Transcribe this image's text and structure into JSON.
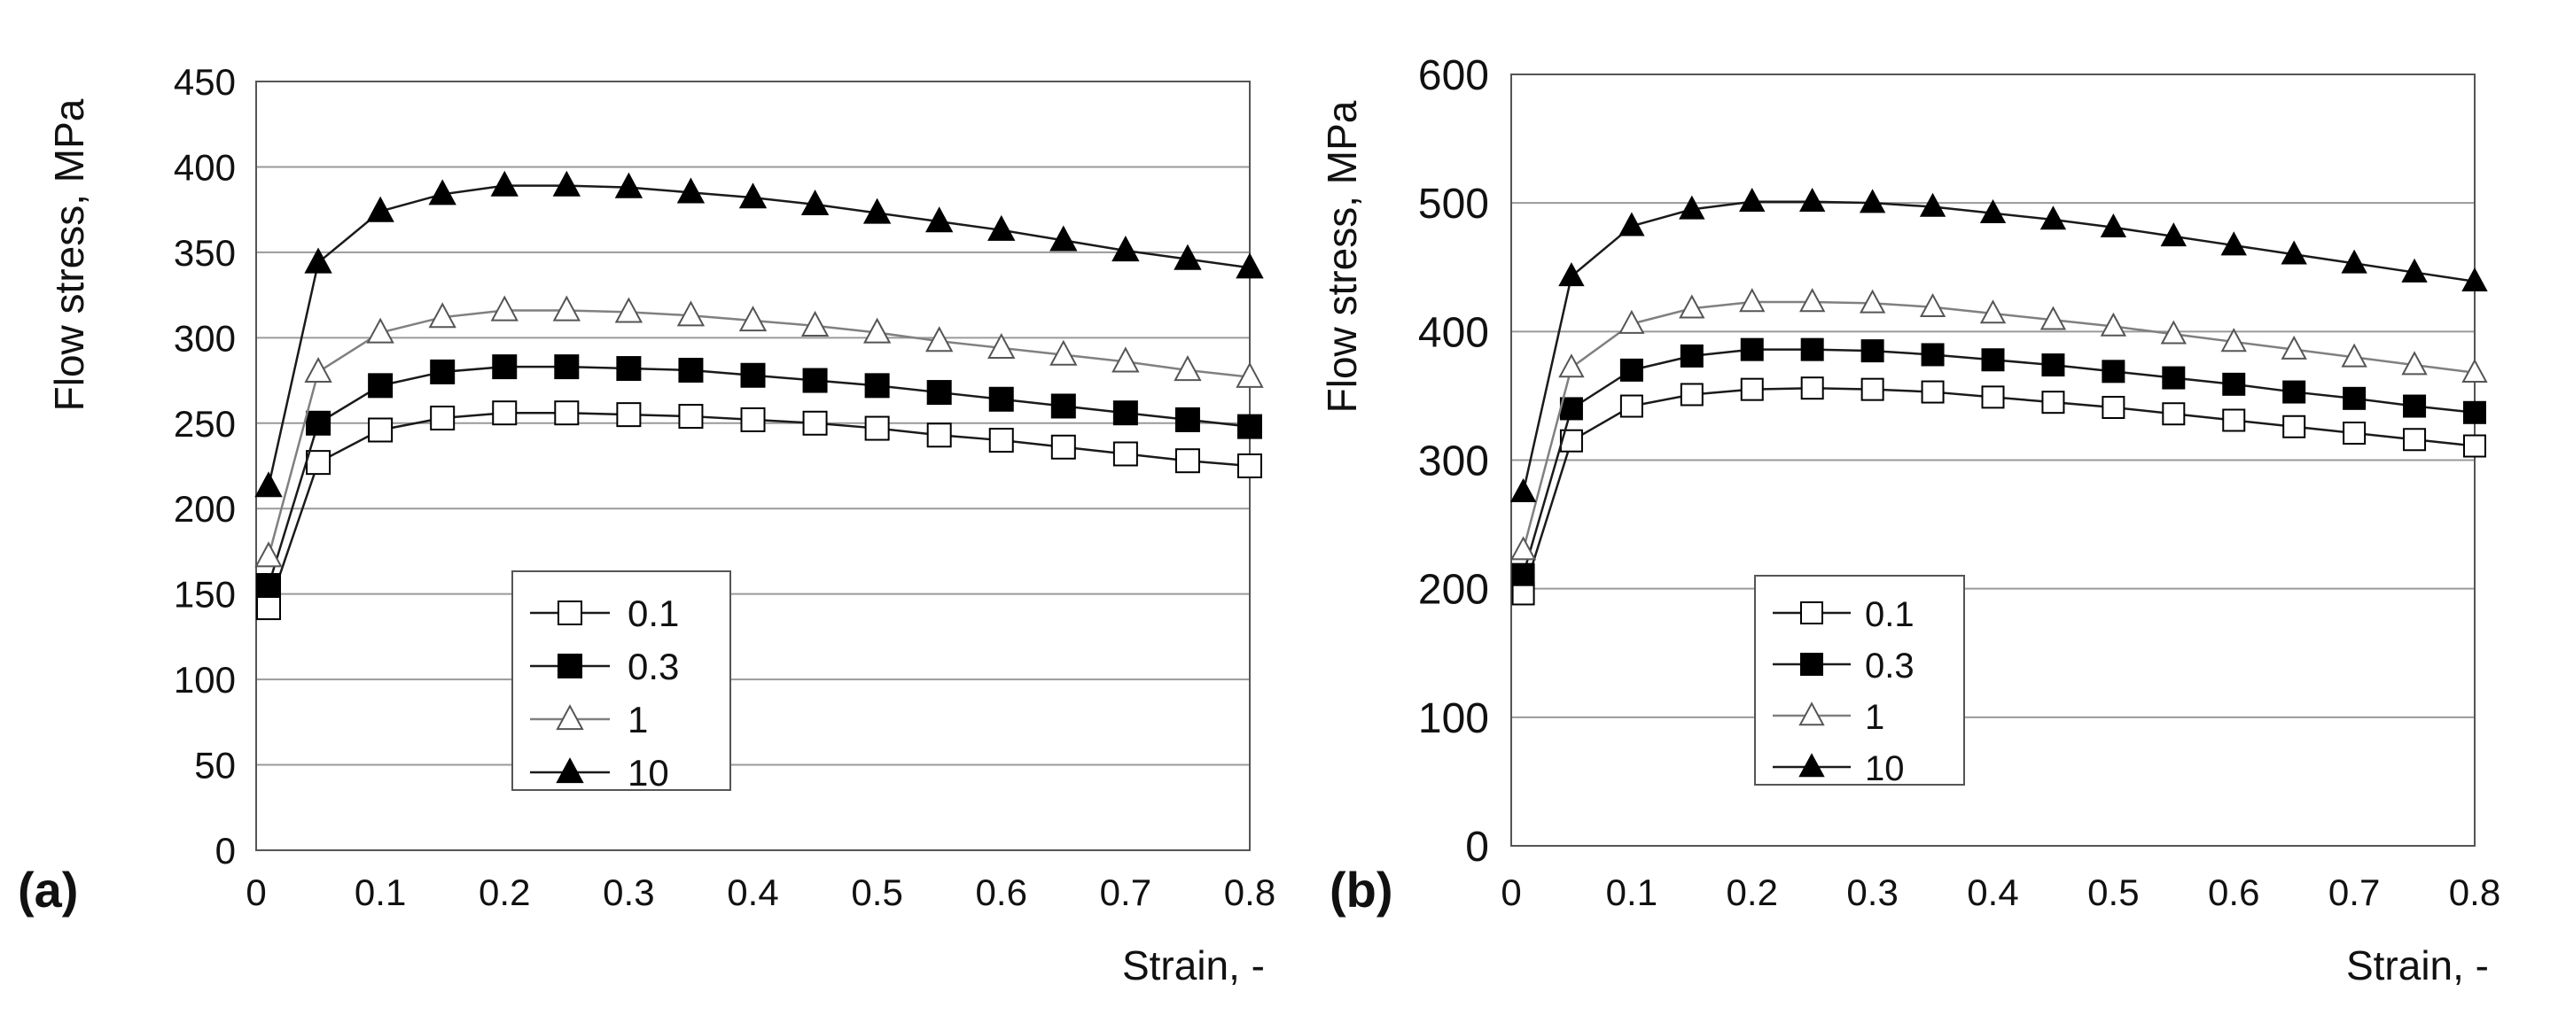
{
  "chart_data": [
    {
      "panel": "(a)",
      "type": "line",
      "title": "",
      "xlabel": "Strain, -",
      "ylabel": "Flow stress, MPa",
      "xlim": [
        0,
        0.8
      ],
      "ylim": [
        0,
        450
      ],
      "xticks": [
        "0",
        "0.1",
        "0.2",
        "0.3",
        "0.4",
        "0.5",
        "0.6",
        "0.7",
        "0.8"
      ],
      "yticks": [
        "0",
        "50",
        "100",
        "150",
        "200",
        "250",
        "300",
        "350",
        "400",
        "450"
      ],
      "grid": "horizontal",
      "legend_position": "center-left",
      "x": [
        0.01,
        0.05,
        0.1,
        0.15,
        0.2,
        0.25,
        0.3,
        0.35,
        0.4,
        0.45,
        0.5,
        0.55,
        0.6,
        0.65,
        0.7,
        0.75,
        0.8
      ],
      "series": [
        {
          "name": "0.1",
          "marker": "square-open",
          "values": [
            142,
            227,
            246,
            253,
            256,
            256,
            255,
            254,
            252,
            250,
            247,
            243,
            240,
            236,
            232,
            228,
            225
          ]
        },
        {
          "name": "0.3",
          "marker": "square-filled",
          "values": [
            155,
            250,
            272,
            280,
            283,
            283,
            282,
            281,
            278,
            275,
            272,
            268,
            264,
            260,
            256,
            252,
            248
          ]
        },
        {
          "name": "1",
          "marker": "triangle-open",
          "values": [
            172,
            280,
            303,
            312,
            316,
            316,
            315,
            313,
            310,
            307,
            303,
            298,
            294,
            290,
            286,
            281,
            277
          ]
        },
        {
          "name": "10",
          "marker": "triangle-filled",
          "values": [
            213,
            344,
            374,
            384,
            389,
            389,
            388,
            385,
            382,
            378,
            373,
            368,
            363,
            357,
            351,
            346,
            341
          ]
        }
      ]
    },
    {
      "panel": "(b)",
      "type": "line",
      "title": "",
      "xlabel": "Strain, -",
      "ylabel": "Flow stress, MPa",
      "xlim": [
        0,
        0.8
      ],
      "ylim": [
        0,
        600
      ],
      "xticks": [
        "0",
        "0.1",
        "0.2",
        "0.3",
        "0.4",
        "0.5",
        "0.6",
        "0.7",
        "0.8"
      ],
      "yticks": [
        "0",
        "100",
        "200",
        "300",
        "400",
        "500",
        "600"
      ],
      "grid": "horizontal",
      "legend_position": "center-left",
      "x": [
        0.01,
        0.05,
        0.1,
        0.15,
        0.2,
        0.25,
        0.3,
        0.35,
        0.4,
        0.45,
        0.5,
        0.55,
        0.6,
        0.65,
        0.7,
        0.75,
        0.8
      ],
      "series": [
        {
          "name": "0.1",
          "marker": "square-open",
          "values": [
            196,
            315,
            342,
            351,
            355,
            356,
            355,
            353,
            349,
            345,
            341,
            336,
            331,
            326,
            321,
            316,
            311
          ]
        },
        {
          "name": "0.3",
          "marker": "square-filled",
          "values": [
            211,
            340,
            370,
            381,
            386,
            386,
            385,
            382,
            378,
            374,
            369,
            364,
            359,
            353,
            348,
            342,
            337
          ]
        },
        {
          "name": "1",
          "marker": "triangle-open",
          "values": [
            230,
            372,
            406,
            418,
            423,
            423,
            422,
            419,
            414,
            409,
            404,
            398,
            392,
            386,
            380,
            374,
            368
          ]
        },
        {
          "name": "10",
          "marker": "triangle-filled",
          "values": [
            275,
            443,
            482,
            495,
            501,
            501,
            500,
            497,
            492,
            487,
            481,
            474,
            467,
            460,
            453,
            446,
            439
          ]
        }
      ]
    }
  ],
  "colors": {
    "series_line": "#1a1a1a",
    "series_light": "#808080",
    "grid": "#9a9a9a",
    "axis": "#555555",
    "marker_open_fill": "#ffffff",
    "marker_filled": "#000000"
  }
}
